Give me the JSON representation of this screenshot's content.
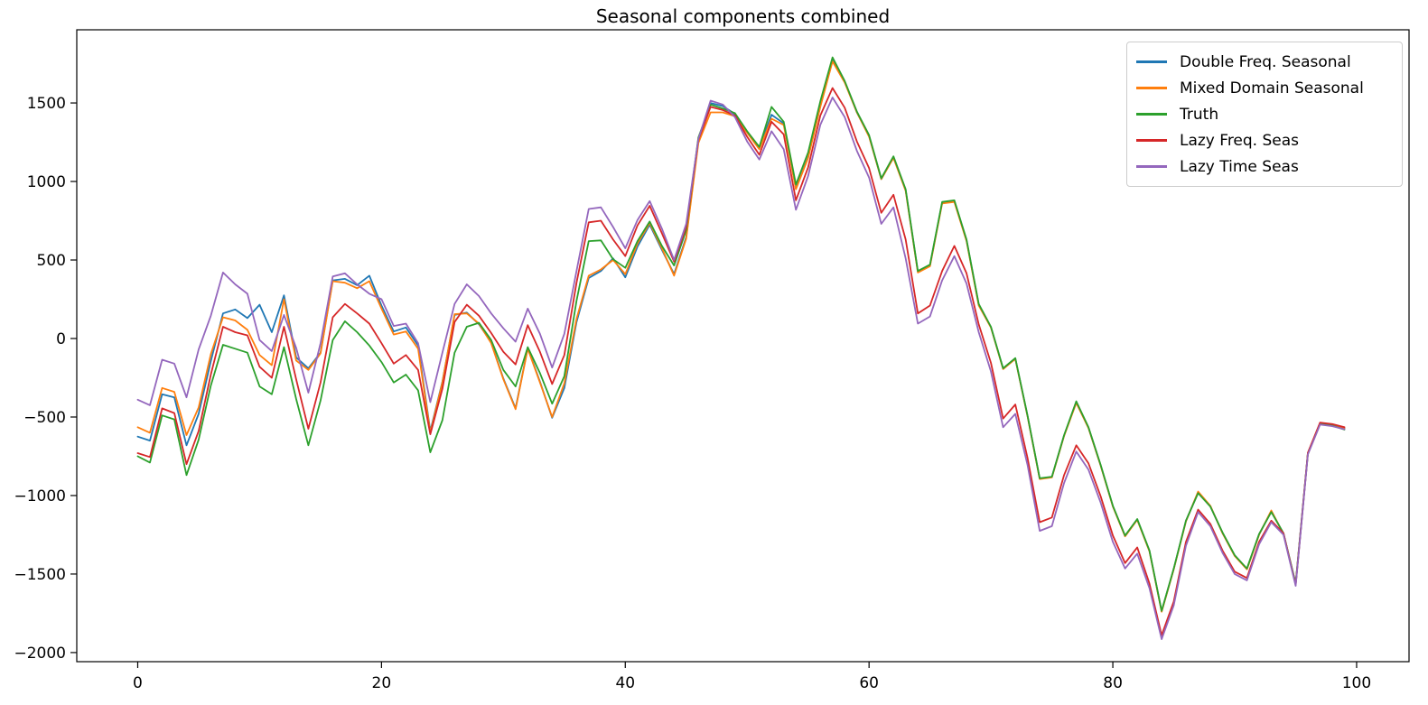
{
  "chart_data": {
    "type": "line",
    "title": "Seasonal components combined",
    "xlabel": "",
    "ylabel": "",
    "x_start": 0,
    "x_step": 1,
    "xlim": [
      -5.0,
      104.3
    ],
    "ylim": [
      -2058,
      1966
    ],
    "x_ticks": [
      0,
      20,
      40,
      60,
      80,
      100
    ],
    "y_ticks": [
      -2000,
      -1500,
      -1000,
      -500,
      0,
      500,
      1000,
      1500
    ],
    "grid": false,
    "legend_position": "upper right",
    "axis_color": "#000000",
    "background_color": "#ffffff",
    "series": [
      {
        "name": "Double Freq. Seasonal",
        "color": "#1f77b4",
        "values": [
          -625,
          -650,
          -355,
          -375,
          -680,
          -480,
          -145,
          160,
          185,
          130,
          215,
          40,
          275,
          -120,
          -190,
          -90,
          370,
          380,
          340,
          400,
          210,
          45,
          70,
          -45,
          -590,
          -275,
          150,
          165,
          90,
          -25,
          -255,
          -445,
          -60,
          -275,
          -505,
          -315,
          105,
          385,
          430,
          510,
          390,
          585,
          725,
          565,
          410,
          645,
          1260,
          1500,
          1480,
          1430,
          1315,
          1215,
          1425,
          1370,
          955,
          1155,
          1480,
          1770,
          1635,
          1440,
          1290,
          1015,
          1155,
          945,
          425,
          465,
          865,
          875,
          625,
          215,
          72,
          -192,
          -128,
          -492,
          -892,
          -882,
          -618,
          -405,
          -568,
          -808,
          -1068,
          -1258,
          -1152,
          -1352,
          -1738,
          -1468,
          -1162,
          -980,
          -1068,
          -1238,
          -1382,
          -1468,
          -1248,
          -1100,
          -1242,
          -1562,
          -732,
          -542,
          -552,
          -572
        ]
      },
      {
        "name": "Mixed Domain Seasonal",
        "color": "#ff7f0e",
        "values": [
          -565,
          -600,
          -315,
          -340,
          -615,
          -440,
          -100,
          135,
          115,
          55,
          -105,
          -170,
          250,
          -140,
          -200,
          -95,
          365,
          355,
          320,
          365,
          190,
          25,
          45,
          -65,
          -600,
          -280,
          155,
          160,
          95,
          -30,
          -260,
          -450,
          -65,
          -280,
          -500,
          -285,
          125,
          400,
          440,
          500,
          410,
          605,
          735,
          575,
          400,
          635,
          1245,
          1440,
          1440,
          1415,
          1310,
          1205,
          1400,
          1360,
          950,
          1150,
          1475,
          1765,
          1630,
          1440,
          1285,
          1015,
          1150,
          940,
          420,
          460,
          860,
          870,
          620,
          210,
          70,
          -195,
          -130,
          -495,
          -895,
          -885,
          -620,
          -410,
          -570,
          -810,
          -1070,
          -1260,
          -1155,
          -1355,
          -1740,
          -1470,
          -1165,
          -975,
          -1065,
          -1240,
          -1385,
          -1470,
          -1250,
          -1095,
          -1245,
          -1565,
          -735,
          -545,
          -550,
          -570
        ]
      },
      {
        "name": "Truth",
        "color": "#2ca02c",
        "values": [
          -750,
          -790,
          -490,
          -515,
          -870,
          -645,
          -300,
          -40,
          -65,
          -90,
          -305,
          -355,
          -55,
          -385,
          -680,
          -395,
          -10,
          110,
          40,
          -45,
          -150,
          -280,
          -230,
          -330,
          -725,
          -520,
          -90,
          75,
          100,
          -10,
          -200,
          -305,
          -55,
          -220,
          -415,
          -240,
          240,
          620,
          625,
          505,
          450,
          620,
          745,
          590,
          465,
          690,
          1280,
          1490,
          1465,
          1435,
          1320,
          1220,
          1475,
          1380,
          980,
          1185,
          1510,
          1790,
          1640,
          1445,
          1295,
          1020,
          1160,
          950,
          430,
          470,
          870,
          880,
          630,
          220,
          75,
          -190,
          -125,
          -490,
          -890,
          -880,
          -615,
          -400,
          -565,
          -805,
          -1065,
          -1255,
          -1150,
          -1350,
          -1735,
          -1465,
          -1160,
          -985,
          -1070,
          -1235,
          -1380,
          -1465,
          -1245,
          -1105,
          -1240,
          -1560,
          -730,
          -540,
          -555,
          -580
        ]
      },
      {
        "name": "Lazy Freq. Seas",
        "color": "#d62728",
        "values": [
          -730,
          -755,
          -445,
          -475,
          -800,
          -590,
          -230,
          75,
          40,
          20,
          -180,
          -250,
          75,
          -260,
          -575,
          -280,
          135,
          220,
          160,
          95,
          -30,
          -160,
          -105,
          -200,
          -610,
          -320,
          105,
          215,
          145,
          35,
          -85,
          -165,
          85,
          -85,
          -290,
          -105,
          355,
          740,
          750,
          630,
          525,
          720,
          845,
          670,
          490,
          710,
          1265,
          1475,
          1455,
          1420,
          1285,
          1170,
          1380,
          1300,
          880,
          1090,
          1420,
          1595,
          1470,
          1255,
          1085,
          800,
          915,
          630,
          160,
          210,
          430,
          590,
          415,
          90,
          -155,
          -510,
          -420,
          -760,
          -1170,
          -1140,
          -870,
          -680,
          -795,
          -1005,
          -1255,
          -1430,
          -1330,
          -1560,
          -1890,
          -1675,
          -1295,
          -1090,
          -1180,
          -1350,
          -1485,
          -1525,
          -1295,
          -1160,
          -1240,
          -1570,
          -728,
          -535,
          -545,
          -565
        ]
      },
      {
        "name": "Lazy Time Seas",
        "color": "#9467bd",
        "values": [
          -390,
          -425,
          -135,
          -160,
          -375,
          -70,
          145,
          420,
          345,
          285,
          -10,
          -80,
          150,
          -60,
          -345,
          -30,
          395,
          415,
          345,
          285,
          250,
          80,
          95,
          -30,
          -405,
          -90,
          220,
          345,
          270,
          160,
          65,
          -20,
          190,
          30,
          -185,
          30,
          430,
          825,
          835,
          710,
          575,
          755,
          875,
          700,
          500,
          730,
          1270,
          1515,
          1490,
          1410,
          1255,
          1140,
          1320,
          1205,
          820,
          1035,
          1360,
          1535,
          1410,
          1195,
          1025,
          730,
          835,
          510,
          95,
          140,
          370,
          525,
          350,
          40,
          -210,
          -565,
          -480,
          -805,
          -1225,
          -1195,
          -920,
          -720,
          -835,
          -1045,
          -1295,
          -1465,
          -1370,
          -1590,
          -1915,
          -1700,
          -1320,
          -1105,
          -1195,
          -1365,
          -1500,
          -1540,
          -1310,
          -1170,
          -1250,
          -1575,
          -738,
          -548,
          -558,
          -578
        ]
      }
    ]
  }
}
